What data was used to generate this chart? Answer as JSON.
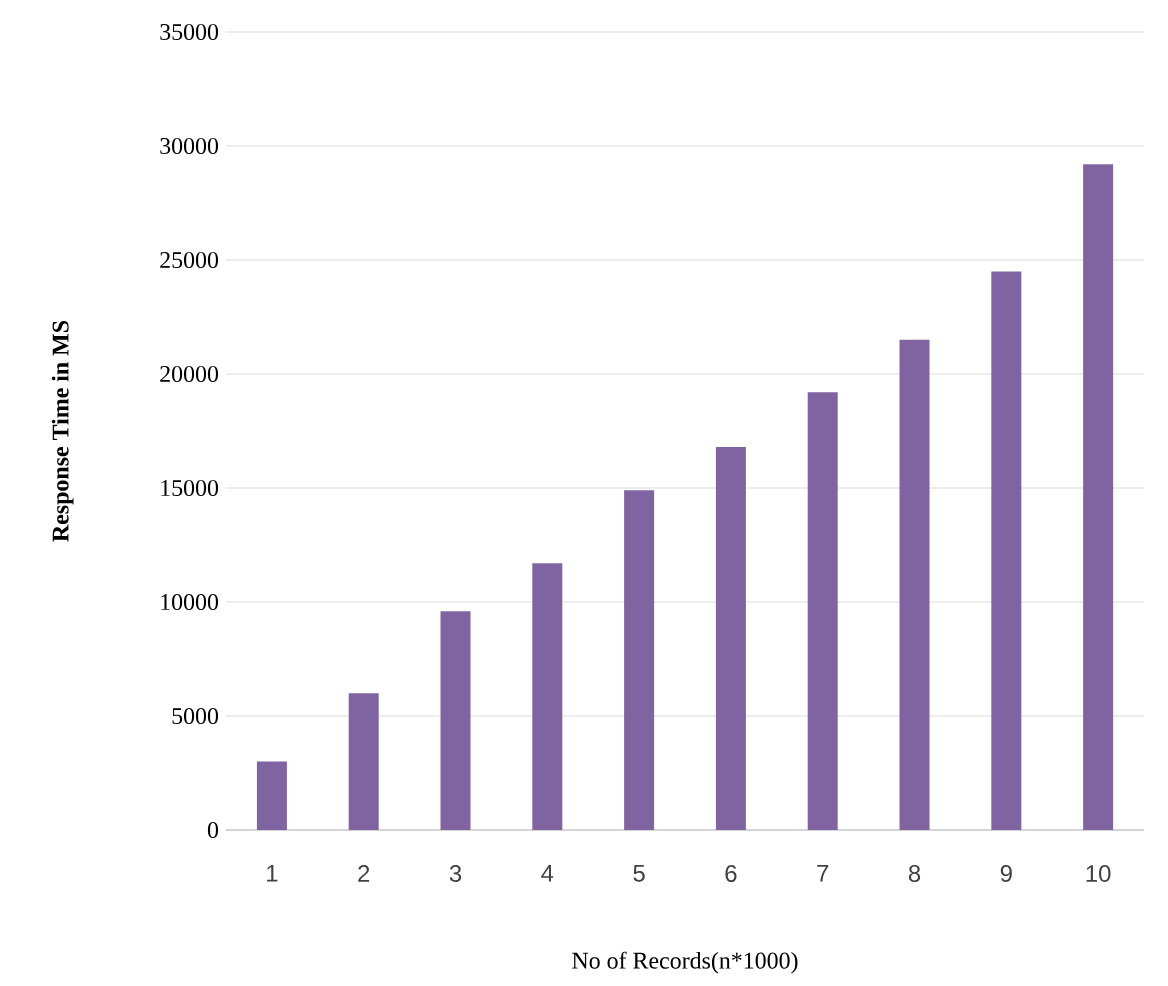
{
  "chart_data": {
    "type": "bar",
    "xlabel": "No of Records(n*1000)",
    "ylabel": "Response Time in MS",
    "categories": [
      "1",
      "2",
      "3",
      "4",
      "5",
      "6",
      "7",
      "8",
      "9",
      "10"
    ],
    "values": [
      3000,
      6000,
      9600,
      11700,
      14900,
      16800,
      19200,
      21500,
      24500,
      29200
    ],
    "color": "#8064a2",
    "ylim": [
      0,
      35000
    ],
    "yticks": [
      0,
      5000,
      10000,
      15000,
      20000,
      25000,
      30000,
      35000
    ],
    "grid": "y"
  }
}
